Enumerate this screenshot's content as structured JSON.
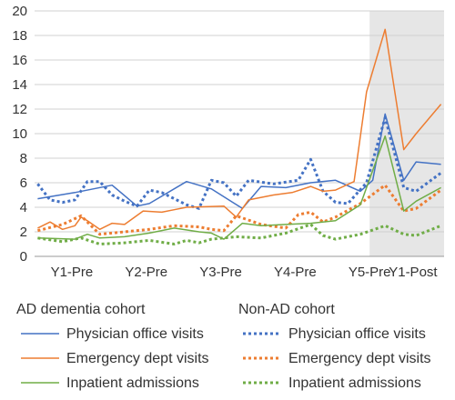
{
  "chart_data": {
    "type": "line",
    "categories": [
      "Y1-Pre",
      "Y2-Pre",
      "Y3-Pre",
      "Y4-Pre",
      "Y5-Pre",
      "Y1-Post"
    ],
    "ylim": [
      0,
      20
    ],
    "yticks": [
      0,
      2,
      4,
      6,
      8,
      10,
      12,
      14,
      16,
      18,
      20
    ],
    "grid": "horizontal",
    "shaded_region": {
      "from_period": 54,
      "to_period": 65,
      "color": "#e6e6e6"
    },
    "x_period_count": 66,
    "groups": [
      {
        "name": "AD dementia cohort",
        "line_style": "solid"
      },
      {
        "name": "Non-AD cohort",
        "line_style": "dotted"
      }
    ],
    "series": [
      {
        "name": "Physician office visits",
        "group": "AD dementia cohort",
        "color": "#4472c4",
        "dash": "solid",
        "points": [
          [
            0,
            4.7
          ],
          [
            6,
            5.2
          ],
          [
            12,
            5.8
          ],
          [
            16,
            4.1
          ],
          [
            18,
            4.3
          ],
          [
            24,
            6.1
          ],
          [
            28,
            5.5
          ],
          [
            33,
            3.9
          ],
          [
            36,
            5.7
          ],
          [
            40,
            5.6
          ],
          [
            44,
            6.0
          ],
          [
            48,
            6.2
          ],
          [
            52,
            5.3
          ],
          [
            54,
            6.2
          ],
          [
            56,
            11.6
          ],
          [
            59,
            6.2
          ],
          [
            61,
            7.7
          ],
          [
            65,
            7.5
          ]
        ]
      },
      {
        "name": "Emergency dept visits",
        "group": "AD dementia cohort",
        "color": "#ed7d31",
        "dash": "solid",
        "points": [
          [
            0,
            2.3
          ],
          [
            2,
            2.8
          ],
          [
            4,
            2.2
          ],
          [
            6,
            2.5
          ],
          [
            7,
            3.2
          ],
          [
            8,
            2.9
          ],
          [
            10,
            2.2
          ],
          [
            12,
            2.7
          ],
          [
            14,
            2.6
          ],
          [
            17,
            3.7
          ],
          [
            20,
            3.6
          ],
          [
            22,
            3.8
          ],
          [
            24,
            4.0
          ],
          [
            30,
            4.1
          ],
          [
            32,
            3.2
          ],
          [
            34,
            4.6
          ],
          [
            38,
            5.0
          ],
          [
            41,
            5.2
          ],
          [
            44,
            5.7
          ],
          [
            46,
            5.3
          ],
          [
            48,
            5.4
          ],
          [
            51,
            6.1
          ],
          [
            53,
            13.4
          ],
          [
            56,
            18.5
          ],
          [
            59,
            8.7
          ],
          [
            61,
            10.0
          ],
          [
            65,
            12.4
          ]
        ]
      },
      {
        "name": "Inpatient admissions",
        "group": "AD dementia cohort",
        "color": "#70ad47",
        "dash": "solid",
        "points": [
          [
            0,
            1.5
          ],
          [
            6,
            1.4
          ],
          [
            8,
            1.8
          ],
          [
            10,
            1.5
          ],
          [
            14,
            1.6
          ],
          [
            18,
            1.9
          ],
          [
            22,
            2.3
          ],
          [
            26,
            2.0
          ],
          [
            28,
            1.9
          ],
          [
            30,
            1.4
          ],
          [
            33,
            2.7
          ],
          [
            36,
            2.5
          ],
          [
            40,
            2.6
          ],
          [
            44,
            2.7
          ],
          [
            48,
            2.9
          ],
          [
            52,
            4.2
          ],
          [
            56,
            9.8
          ],
          [
            59,
            3.7
          ],
          [
            61,
            4.5
          ],
          [
            65,
            5.6
          ]
        ]
      },
      {
        "name": "Physician office visits",
        "group": "Non-AD cohort",
        "color": "#4472c4",
        "dash": "dotted",
        "points": [
          [
            0,
            5.9
          ],
          [
            2,
            4.6
          ],
          [
            4,
            4.4
          ],
          [
            6,
            4.6
          ],
          [
            8,
            6.1
          ],
          [
            10,
            6.1
          ],
          [
            12,
            5.0
          ],
          [
            14,
            4.5
          ],
          [
            16,
            4.1
          ],
          [
            18,
            5.4
          ],
          [
            20,
            5.2
          ],
          [
            24,
            4.2
          ],
          [
            26,
            3.9
          ],
          [
            28,
            6.2
          ],
          [
            30,
            6.0
          ],
          [
            32,
            4.9
          ],
          [
            34,
            6.2
          ],
          [
            38,
            5.9
          ],
          [
            42,
            6.2
          ],
          [
            44,
            7.9
          ],
          [
            46,
            5.3
          ],
          [
            48,
            4.4
          ],
          [
            50,
            4.3
          ],
          [
            53,
            6.0
          ],
          [
            56,
            11.3
          ],
          [
            59,
            5.6
          ],
          [
            61,
            5.3
          ],
          [
            65,
            6.8
          ]
        ]
      },
      {
        "name": "Emergency dept visits",
        "group": "Non-AD cohort",
        "color": "#ed7d31",
        "dash": "dotted",
        "points": [
          [
            0,
            2.1
          ],
          [
            4,
            2.6
          ],
          [
            7,
            3.3
          ],
          [
            10,
            1.8
          ],
          [
            14,
            2.0
          ],
          [
            18,
            2.2
          ],
          [
            22,
            2.5
          ],
          [
            26,
            2.4
          ],
          [
            28,
            2.2
          ],
          [
            30,
            2.1
          ],
          [
            32,
            3.3
          ],
          [
            36,
            2.6
          ],
          [
            40,
            2.3
          ],
          [
            42,
            3.4
          ],
          [
            44,
            3.6
          ],
          [
            46,
            2.8
          ],
          [
            48,
            3.2
          ],
          [
            52,
            4.3
          ],
          [
            56,
            5.8
          ],
          [
            59,
            3.7
          ],
          [
            61,
            3.9
          ],
          [
            65,
            5.4
          ]
        ]
      },
      {
        "name": "Inpatient admissions",
        "group": "Non-AD cohort",
        "color": "#70ad47",
        "dash": "dotted",
        "points": [
          [
            0,
            1.5
          ],
          [
            4,
            1.2
          ],
          [
            7,
            1.5
          ],
          [
            10,
            1.0
          ],
          [
            14,
            1.1
          ],
          [
            18,
            1.3
          ],
          [
            22,
            1.0
          ],
          [
            24,
            1.3
          ],
          [
            26,
            1.1
          ],
          [
            28,
            1.4
          ],
          [
            32,
            1.6
          ],
          [
            36,
            1.5
          ],
          [
            40,
            1.9
          ],
          [
            44,
            2.6
          ],
          [
            46,
            1.7
          ],
          [
            48,
            1.4
          ],
          [
            50,
            1.6
          ],
          [
            52,
            1.8
          ],
          [
            56,
            2.5
          ],
          [
            59,
            1.8
          ],
          [
            61,
            1.7
          ],
          [
            65,
            2.5
          ]
        ]
      }
    ]
  }
}
